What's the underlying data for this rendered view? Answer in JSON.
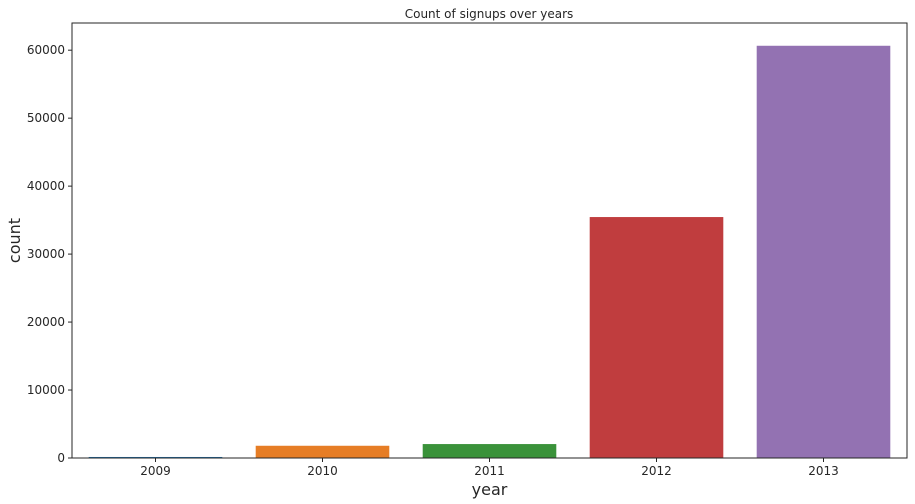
{
  "chart_data": {
    "type": "bar",
    "title": "Count of signups over years",
    "xlabel": "year",
    "ylabel": "count",
    "categories": [
      "2009",
      "2010",
      "2011",
      "2012",
      "2013"
    ],
    "values": [
      150,
      1800,
      2050,
      35450,
      60650
    ],
    "colors": [
      "#1f77b4",
      "#e67d25",
      "#3a923a",
      "#c03d3e",
      "#9372b2"
    ],
    "ylim": [
      0,
      64000
    ],
    "yticks": [
      0,
      10000,
      20000,
      30000,
      40000,
      50000,
      60000
    ],
    "grid": false,
    "legend": "none"
  }
}
